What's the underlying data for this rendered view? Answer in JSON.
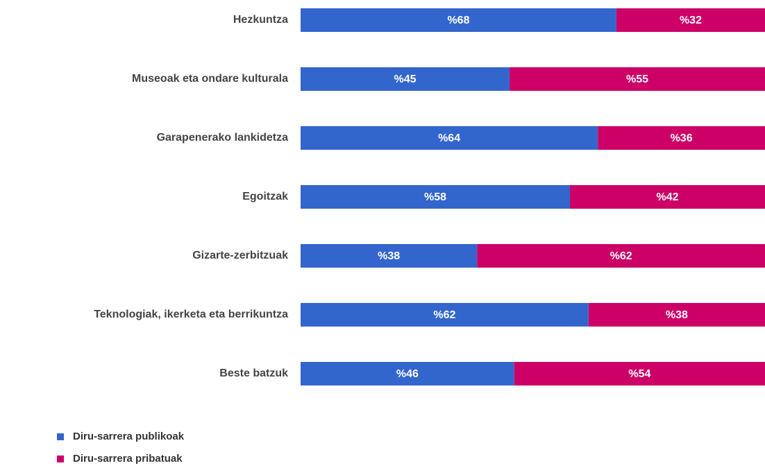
{
  "chart_data": {
    "type": "stacked_barh",
    "categories": [
      "Hezkuntza",
      "Museoak eta ondare kulturala",
      "Garapenerako lankidetza",
      "Egoitzak",
      "Gizarte-zerbitzuak",
      "Teknologiak, ikerketa eta berrikuntza",
      "Beste batzuk"
    ],
    "series": [
      {
        "name": "Diru-sarrera publikoak",
        "color": "#3366cc",
        "values": [
          68,
          45,
          64,
          58,
          38,
          62,
          46
        ],
        "value_labels": [
          "%68",
          "%45",
          "%64",
          "%58",
          "%38",
          "%62",
          "%46"
        ]
      },
      {
        "name": "Diru-sarrera pribatuak",
        "color": "#cc0066",
        "values": [
          32,
          55,
          36,
          42,
          62,
          38,
          54
        ],
        "value_labels": [
          "%32",
          "%55",
          "%36",
          "%42",
          "%62",
          "%38",
          "%54"
        ]
      }
    ],
    "xlim": [
      0,
      100
    ],
    "legend": "bottom-left"
  }
}
